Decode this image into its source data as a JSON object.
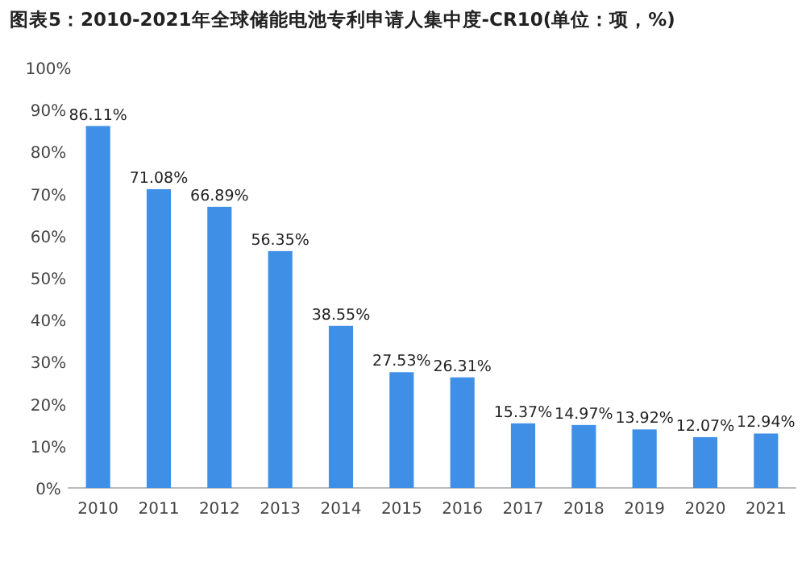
{
  "chart_data": {
    "type": "bar",
    "title": "图表5：2010-2021年全球储能电池专利申请人集中度-CR10(单位：项，%)",
    "categories": [
      "2010",
      "2011",
      "2012",
      "2013",
      "2014",
      "2015",
      "2016",
      "2017",
      "2018",
      "2019",
      "2020",
      "2021"
    ],
    "values": [
      86.11,
      71.08,
      66.89,
      56.35,
      38.55,
      27.53,
      26.31,
      15.37,
      14.97,
      13.92,
      12.07,
      12.94
    ],
    "value_labels": [
      "86.11%",
      "71.08%",
      "66.89%",
      "56.35%",
      "38.55%",
      "27.53%",
      "26.31%",
      "15.37%",
      "14.97%",
      "13.92%",
      "12.07%",
      "12.94%"
    ],
    "color": "#3f8fe6",
    "ylim": [
      0,
      100
    ],
    "yticks": [
      {
        "value": 0,
        "label": "0%"
      },
      {
        "value": 10,
        "label": "10%"
      },
      {
        "value": 20,
        "label": "20%"
      },
      {
        "value": 30,
        "label": "30%"
      },
      {
        "value": 40,
        "label": "40%"
      },
      {
        "value": 50,
        "label": "50%"
      },
      {
        "value": 60,
        "label": "60%"
      },
      {
        "value": 70,
        "label": "70%"
      },
      {
        "value": 80,
        "label": "80%"
      },
      {
        "value": 90,
        "label": "90%"
      },
      {
        "value": 100,
        "label": "100%"
      }
    ],
    "grid": false
  }
}
